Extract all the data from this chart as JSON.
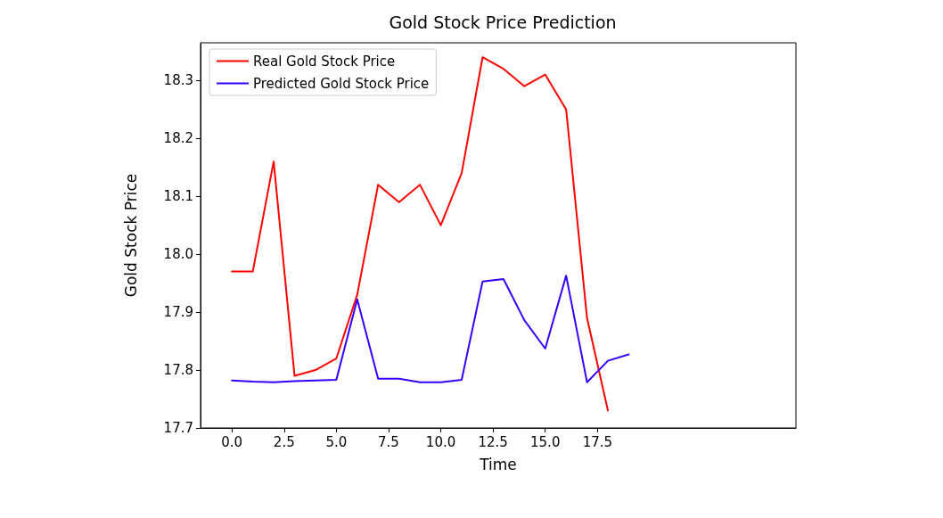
{
  "chart_data": {
    "type": "line",
    "title": "Gold Stock Price Prediction",
    "xlabel": "Time",
    "ylabel": "Gold Stock Price",
    "series": [
      {
        "name": "Real Gold Stock Price",
        "color": "#ff0000",
        "x": [
          0,
          1,
          2,
          3,
          4,
          5,
          6,
          7,
          8,
          9,
          10,
          11,
          12,
          13,
          14,
          15,
          16,
          17,
          18
        ],
        "values": [
          17.97,
          17.97,
          18.16,
          17.79,
          17.8,
          17.82,
          17.93,
          18.12,
          18.09,
          18.12,
          18.05,
          18.14,
          18.34,
          18.32,
          18.29,
          18.31,
          18.25,
          17.89,
          17.73
        ]
      },
      {
        "name": "Predicted Gold Stock Price",
        "color": "#3300ff",
        "x": [
          0,
          1,
          2,
          3,
          4,
          5,
          6,
          7,
          8,
          9,
          10,
          11,
          12,
          13,
          14,
          15,
          16,
          17,
          18,
          19
        ],
        "values": [
          17.782,
          17.78,
          17.779,
          17.781,
          17.782,
          17.783,
          17.922,
          17.785,
          17.785,
          17.779,
          17.779,
          17.783,
          17.953,
          17.957,
          17.886,
          17.837,
          17.963,
          17.779,
          17.816,
          17.827
        ]
      }
    ],
    "xlim": [
      -1.5,
      27
    ],
    "xticks": [
      {
        "value": 0,
        "label": "0.0"
      },
      {
        "value": 2.5,
        "label": "2.5"
      },
      {
        "value": 5,
        "label": "5.0"
      },
      {
        "value": 7.5,
        "label": "7.5"
      },
      {
        "value": 10,
        "label": "10.0"
      },
      {
        "value": 12.5,
        "label": "12.5"
      },
      {
        "value": 15,
        "label": "15.0"
      },
      {
        "value": 17.5,
        "label": "17.5"
      }
    ],
    "ylim": [
      17.7,
      18.365
    ],
    "yticks": [
      {
        "value": 17.7,
        "label": "17.7"
      },
      {
        "value": 17.8,
        "label": "17.8"
      },
      {
        "value": 17.9,
        "label": "17.9"
      },
      {
        "value": 18.0,
        "label": "18.0"
      },
      {
        "value": 18.1,
        "label": "18.1"
      },
      {
        "value": 18.2,
        "label": "18.2"
      },
      {
        "value": 18.3,
        "label": "18.3"
      }
    ],
    "grid": false,
    "legend": "top left",
    "marker": "none",
    "line_style": "solid"
  }
}
